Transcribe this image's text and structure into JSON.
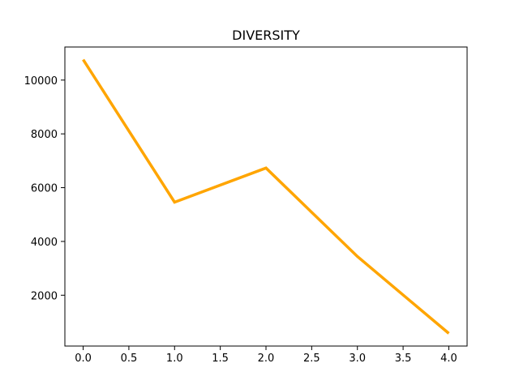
{
  "chart_data": {
    "type": "line",
    "title": "DIVERSITY",
    "xlabel": "",
    "ylabel": "",
    "x": [
      0,
      1,
      2,
      3,
      4
    ],
    "series": [
      {
        "values": [
          10760,
          5460,
          6730,
          3440,
          580
        ],
        "color": "#ffa500"
      }
    ],
    "xlim": [
      -0.2,
      4.2
    ],
    "ylim": [
      110,
      11230
    ],
    "xticks": [
      0.0,
      0.5,
      1.0,
      1.5,
      2.0,
      2.5,
      3.0,
      3.5,
      4.0
    ],
    "xtick_labels": [
      "0.0",
      "0.5",
      "1.0",
      "1.5",
      "2.0",
      "2.5",
      "3.0",
      "3.5",
      "4.0"
    ],
    "yticks": [
      2000,
      4000,
      6000,
      8000,
      10000
    ],
    "ytick_labels": [
      "2000",
      "4000",
      "6000",
      "8000",
      "10000"
    ],
    "grid": false,
    "legend": "none"
  }
}
